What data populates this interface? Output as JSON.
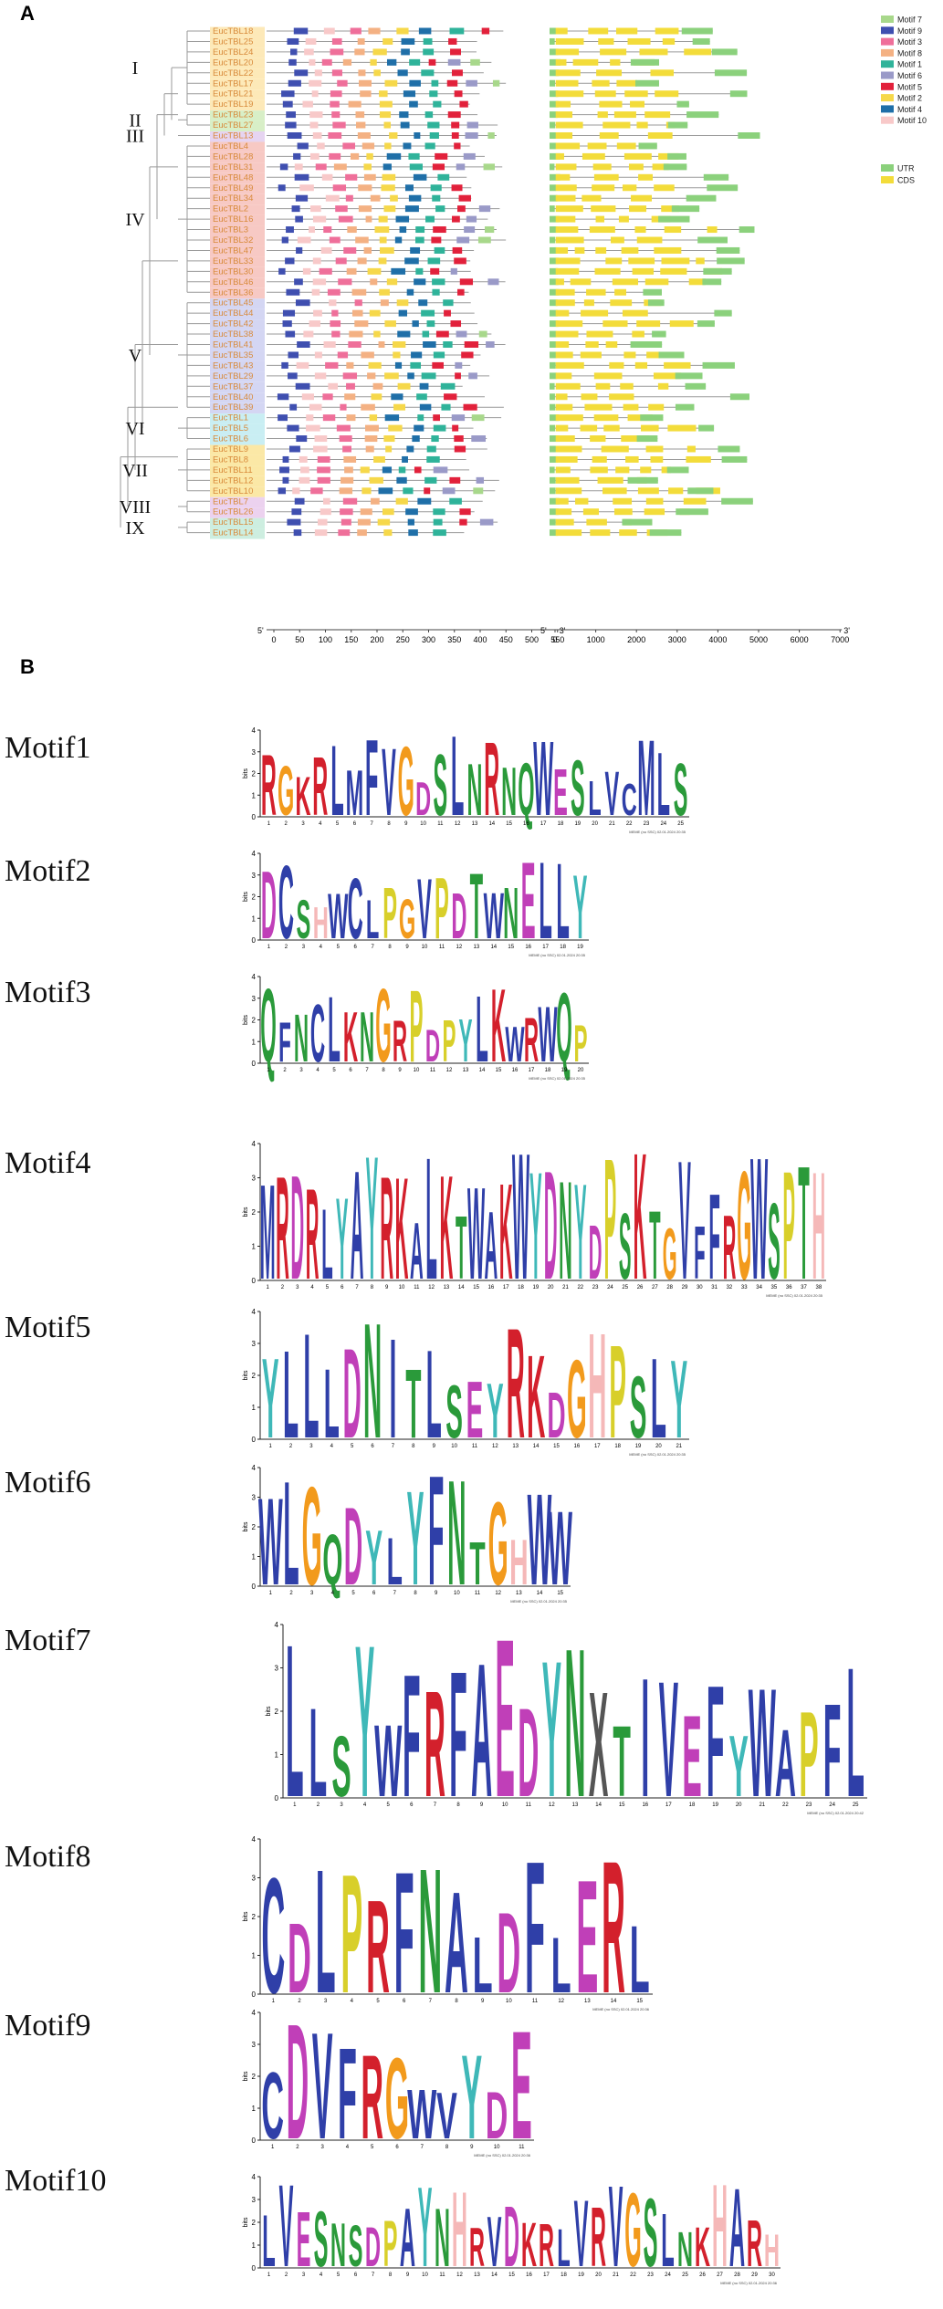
{
  "panel_a": {
    "letter": "A",
    "groups": [
      {
        "label": "I",
        "color": "#fde9b8",
        "genes": [
          "EucTBL18",
          "EucTBL25",
          "EucTBL24",
          "EucTBL20",
          "EucTBL22",
          "EucTBL17",
          "EucTBL21",
          "EucTBL19"
        ]
      },
      {
        "label": "II",
        "color": "#d8efc7",
        "genes": [
          "EucTBL23",
          "EucTBL27"
        ]
      },
      {
        "label": "III",
        "color": "#e6d4f1",
        "genes": [
          "EucTBL13"
        ]
      },
      {
        "label": "IV",
        "color": "#f7c9c4",
        "genes": [
          "EucTBL4",
          "EucTBL28",
          "EucTBL31",
          "EucTBL48",
          "EucTBL49",
          "EucTBL34",
          "EucTBL2",
          "EucTBL16",
          "EucTBL3",
          "EucTBL32",
          "EucTBL47",
          "EucTBL33",
          "EucTBL30",
          "EucTBL46",
          "EucTBL36"
        ]
      },
      {
        "label": "V",
        "color": "#d4d6f3",
        "genes": [
          "EucTBL45",
          "EucTBL44",
          "EucTBL42",
          "EucTBL38",
          "EucTBL41",
          "EucTBL35",
          "EucTBL43",
          "EucTBL29",
          "EucTBL37",
          "EucTBL40",
          "EucTBL39"
        ]
      },
      {
        "label": "VI",
        "color": "#c9eef3",
        "genes": [
          "EucTBL1",
          "EucTBL5",
          "EucTBL6"
        ]
      },
      {
        "label": "VII",
        "color": "#fbe8a6",
        "genes": [
          "EucTBL9",
          "EucTBL8",
          "EucTBL11",
          "EucTBL12",
          "EucTBL10"
        ]
      },
      {
        "label": "VIII",
        "color": "#ecd2ef",
        "genes": [
          "EucTBL7",
          "EucTBL26"
        ]
      },
      {
        "label": "IX",
        "color": "#cdeee0",
        "genes": [
          "EucTBL15",
          "EucTBL14"
        ]
      }
    ],
    "motif_legend": [
      {
        "name": "Motif 7",
        "color": "#a8d88b"
      },
      {
        "name": "Motif 9",
        "color": "#3f4fb0"
      },
      {
        "name": "Motif 3",
        "color": "#ef6f9a"
      },
      {
        "name": "Motif 8",
        "color": "#f4b183"
      },
      {
        "name": "Motif 1",
        "color": "#2fb39a"
      },
      {
        "name": "Motif 6",
        "color": "#9a9ac8"
      },
      {
        "name": "Motif 5",
        "color": "#e2213b"
      },
      {
        "name": "Motif 2",
        "color": "#f6d84a"
      },
      {
        "name": "Motif 4",
        "color": "#1f6fa8"
      },
      {
        "name": "Motif 10",
        "color": "#f8c9c9"
      }
    ],
    "structure_legend": [
      {
        "name": "UTR",
        "color": "#8bd17c"
      },
      {
        "name": "CDS",
        "color": "#f3dc3a"
      }
    ],
    "motif_axis": {
      "start_label": "5'",
      "end_label": "3'",
      "ticks": [
        "0",
        "50",
        "100",
        "150",
        "200",
        "250",
        "300",
        "350",
        "400",
        "450",
        "500",
        "550"
      ],
      "max": 550
    },
    "gene_axis": {
      "start_label": "5'",
      "end_label": "3'",
      "ticks": [
        "0",
        "1000",
        "2000",
        "3000",
        "4000",
        "5000",
        "6000",
        "7000"
      ],
      "max": 7000
    }
  },
  "panel_b": {
    "letter": "B",
    "axis_unit": "bits",
    "motifs": [
      {
        "name": "Motif1",
        "sequence": "RGKRLMFVGDSLNRNQWESLVCMLS",
        "ymax": 4,
        "caption": "MEME (no SSC) 02.01.2024 20:35"
      },
      {
        "name": "Motif2",
        "sequence": "DCSHWCLPGVPDTWNELLY",
        "ymax": 4,
        "caption": "MEME (no SSC) 02.01.2024 20:35"
      },
      {
        "name": "Motif3",
        "sequence": "QFNCLKNGRPDPYLKWRWQP",
        "ymax": 4,
        "caption": "MEME (no SSC) 02.01.2024 20:35"
      },
      {
        "name": "Motif4",
        "sequence": "MRDRLYAYRKALKTWAKWYDNYDPSKTGVFFRGWSPTH",
        "ymax": 4,
        "caption": "MEME (no SSC) 02.01.2024 20:35"
      },
      {
        "name": "Motif5",
        "sequence": "YLLLDNITLSEYRKDGHPSLY",
        "ymax": 4,
        "caption": "MEME (no SSC) 02.01.2024 20:35"
      },
      {
        "name": "Motif6",
        "sequence": "WLGQDYLYFNTGHWW",
        "ymax": 4,
        "caption": "MEME (no SSC) 02.01.2024 20:35"
      },
      {
        "name": "Motif7",
        "sequence": "LLSYWFRFAEDYNXTIVEFYWAPFL",
        "ymax": 4,
        "caption": "MEME (no SSC) 02.01.2024 20:42"
      },
      {
        "name": "Motif8",
        "sequence": "CDLPRFNALDFLERL",
        "ymax": 4,
        "caption": "MEME (no SSC) 02.01.2024 20:36"
      },
      {
        "name": "Motif9",
        "sequence": "CDVFRGWVYDE",
        "ymax": 4,
        "caption": "MEME (no SSC) 02.01.2024 20:36"
      },
      {
        "name": "Motif10",
        "sequence": "LVESNSDPAYNHRVDKRLVRVGSLNKHARH",
        "ymax": 4,
        "caption": "MEME (no SSC) 02.01.2024 20:36"
      }
    ]
  },
  "colors": {
    "residue_colors": {
      "A": "#2f3fa8",
      "C": "#2f3fa8",
      "F": "#2f3fa8",
      "I": "#2f3fa8",
      "L": "#2f3fa8",
      "M": "#2f3fa8",
      "V": "#2f3fa8",
      "W": "#2f3fa8",
      "N": "#2a9a3a",
      "Q": "#2a9a3a",
      "S": "#2a9a3a",
      "T": "#2a9a3a",
      "D": "#c03fb8",
      "E": "#c03fb8",
      "K": "#d3202c",
      "R": "#d3202c",
      "H": "#f5b8b8",
      "G": "#f29a1c",
      "P": "#d8cf2a",
      "Y": "#3fb8b8",
      "X": "#555555"
    }
  }
}
